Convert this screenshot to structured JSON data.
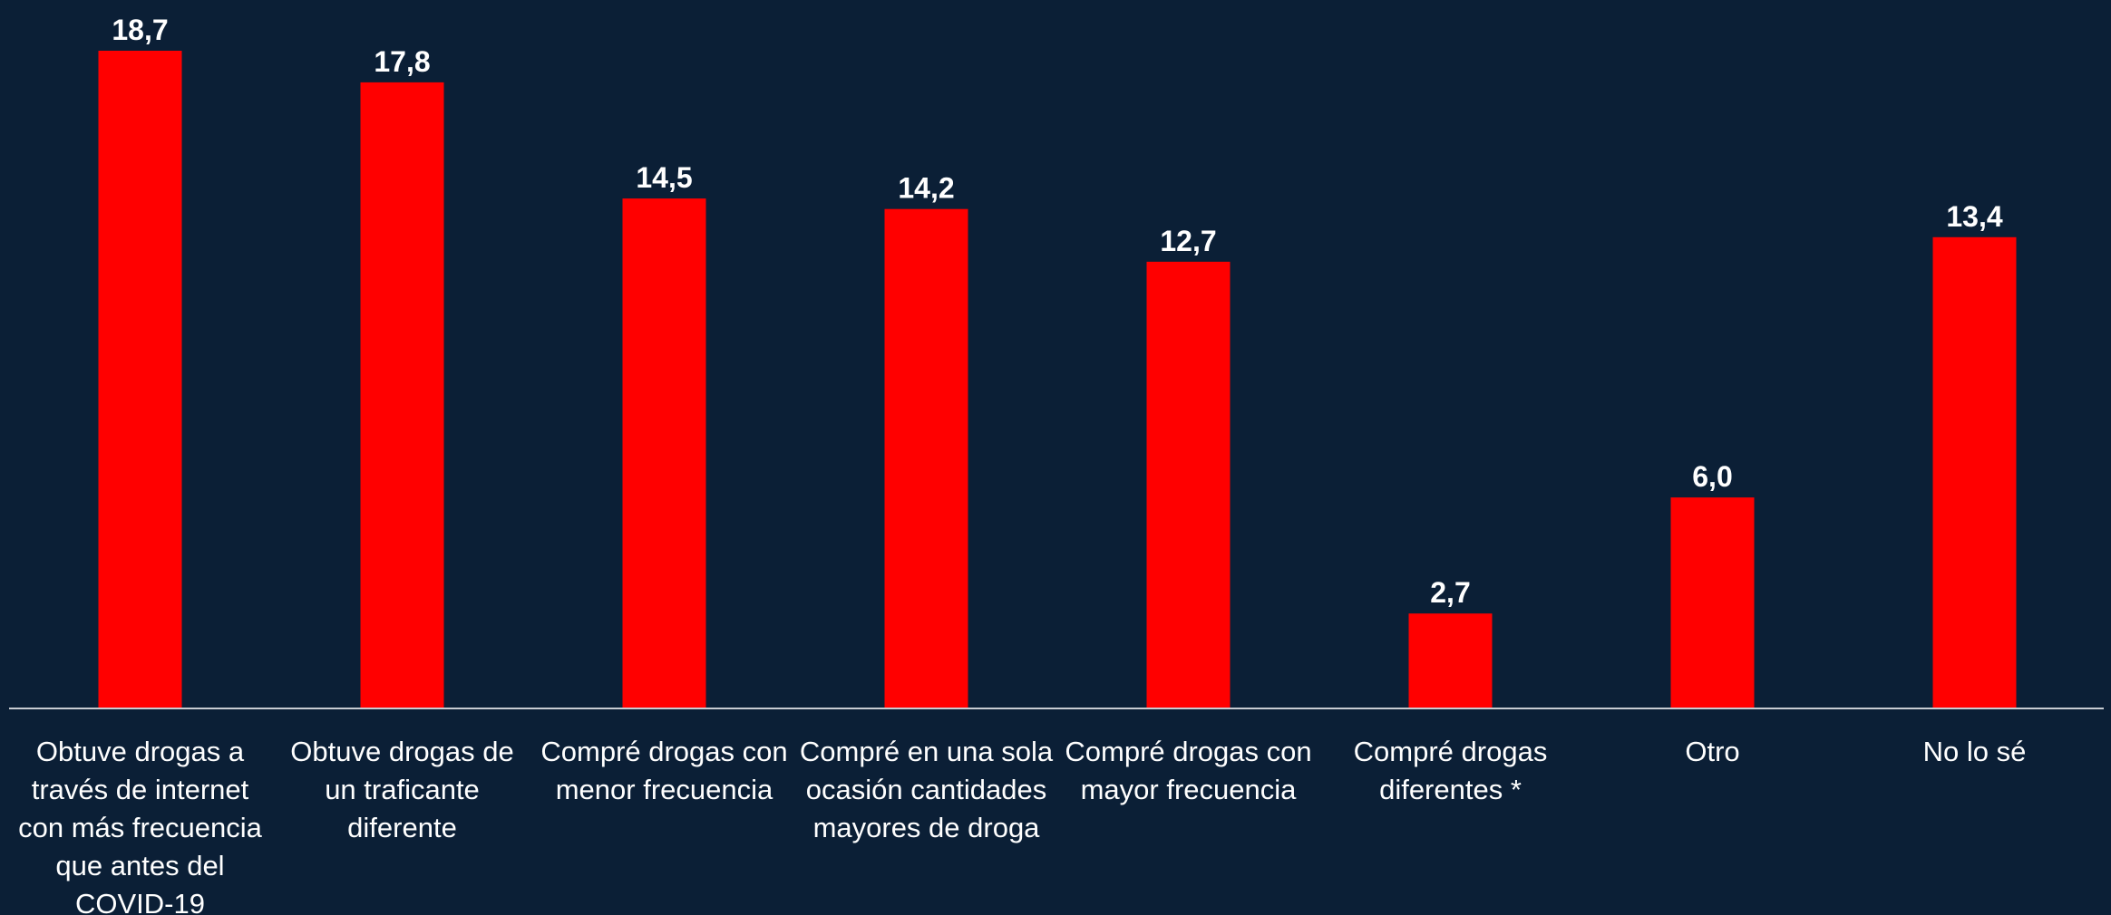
{
  "chart_data": {
    "type": "bar",
    "categories": [
      "Obtuve drogas a través de internet con más frecuencia que antes del COVID-19",
      "Obtuve drogas de un traficante diferente",
      "Compré drogas con menor frecuencia",
      "Compré en una sola ocasión cantidades mayores de droga",
      "Compré drogas con mayor frecuencia",
      "Compré drogas diferentes *",
      "Otro",
      "No lo sé"
    ],
    "category_lines": [
      [
        "Obtuve drogas a",
        "través de internet",
        "con más frecuencia",
        "que antes del",
        "COVID-19"
      ],
      [
        "Obtuve drogas de",
        "un traficante",
        "diferente"
      ],
      [
        "Compré drogas con",
        "menor frecuencia"
      ],
      [
        "Compré en una sola",
        "ocasión cantidades",
        "mayores de droga"
      ],
      [
        "Compré drogas con",
        "mayor frecuencia"
      ],
      [
        "Compré drogas",
        "diferentes *"
      ],
      [
        "Otro"
      ],
      [
        "No lo sé"
      ]
    ],
    "values": [
      18.7,
      17.8,
      14.5,
      14.2,
      12.7,
      2.7,
      6.0,
      13.4
    ],
    "value_labels": [
      "18,7",
      "17,8",
      "14,5",
      "14,2",
      "12,7",
      "2,7",
      "6,0",
      "13,4"
    ],
    "ylim": [
      0,
      18.7
    ],
    "grid": false,
    "legend": "none",
    "colors": {
      "background": "#0b1f36",
      "bar": "#ff0000",
      "axis": "#c8ccd2",
      "text": "#ffffff"
    }
  }
}
